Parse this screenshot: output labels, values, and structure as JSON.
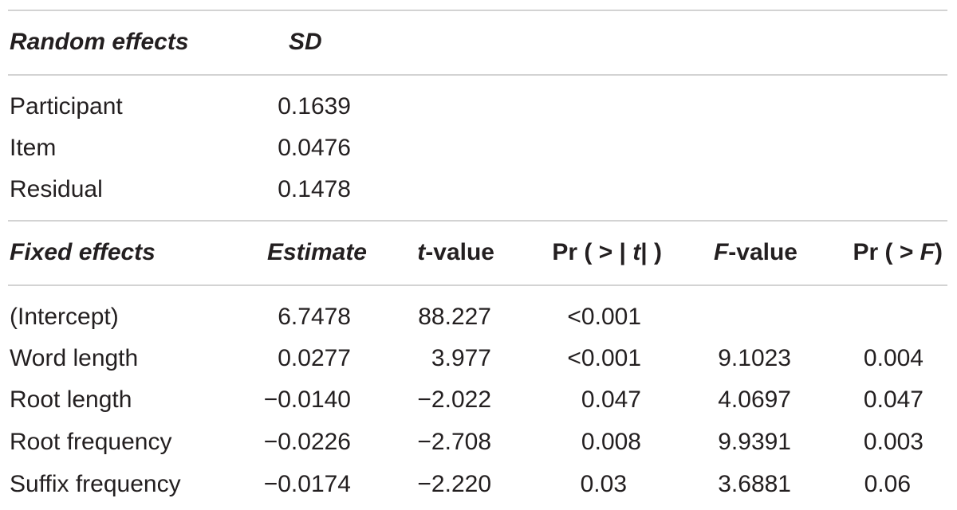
{
  "random_effects": {
    "header": {
      "label": "Random effects",
      "sd": "SD"
    },
    "rows": [
      {
        "label": "Participant",
        "sd": "0.1639"
      },
      {
        "label": "Item",
        "sd": "0.0476"
      },
      {
        "label": "Residual",
        "sd": "0.1478"
      }
    ]
  },
  "fixed_effects": {
    "header": {
      "label": "Fixed effects",
      "estimate": "Estimate",
      "t_value_italic": "t",
      "t_value_rest": "-value",
      "pr_t_pre": "Pr ( > |",
      "pr_t_italic": " t",
      "pr_t_post": "| )",
      "f_value_italic": "F",
      "f_value_rest": "-value",
      "pr_f_pre": "Pr ( > ",
      "pr_f_italic": "F",
      "pr_f_post": ")"
    },
    "rows": [
      {
        "label": "(Intercept)",
        "estimate": "6.7478",
        "t_value": "88.227",
        "pr_t": "<0.001",
        "f_value": "",
        "pr_f": ""
      },
      {
        "label": "Word length",
        "estimate": "0.0277",
        "t_value": "3.977",
        "pr_t": "<0.001",
        "f_value": "9.1023",
        "pr_f": "0.004"
      },
      {
        "label": "Root length",
        "estimate": "−0.0140",
        "t_value": "−2.022",
        "pr_t": "0.047",
        "f_value": "4.0697",
        "pr_f": "0.047"
      },
      {
        "label": "Root frequency",
        "estimate": "−0.0226",
        "t_value": "−2.708",
        "pr_t": "0.008",
        "f_value": "9.9391",
        "pr_f": "0.003"
      },
      {
        "label": "Suffix frequency",
        "estimate": "−0.0174",
        "t_value": "−2.220",
        "pr_t": "0.03",
        "f_value": "3.6881",
        "pr_f": "0.06"
      }
    ]
  }
}
